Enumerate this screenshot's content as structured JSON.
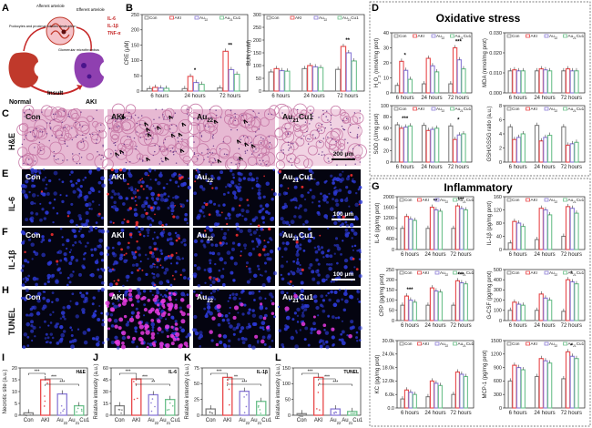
{
  "colors": {
    "con": "#808080",
    "aki": "#e8484a",
    "au22": "#8a7ad6",
    "au21cu1": "#6cc08b"
  },
  "panel_letters": {
    "A": "A",
    "B": "B",
    "C": "C",
    "D": "D",
    "E": "E",
    "F": "F",
    "G": "G",
    "H": "H",
    "I": "I",
    "J": "J",
    "K": "K",
    "L": "L"
  },
  "panelA": {
    "afferent": "Afferent arteriole",
    "efferent": "Efferent arteriole",
    "podocytes": "Podocytes and proximal tubules destruction",
    "glomerular": "Glomerular microthrombus",
    "cytokines": [
      "IL-6",
      "IL-1β",
      "TNF-α"
    ],
    "insult": "Insult",
    "normal": "Normal",
    "aki": "AKI"
  },
  "micro_labels": [
    "Con",
    "AKI",
    "Au22",
    "Au21Cu1"
  ],
  "row_labels": {
    "C": "H&E",
    "E": "IL-6",
    "F": "IL-1β",
    "H": "TUNEL"
  },
  "scale_bars": {
    "C": "200 μm",
    "E": "100 μm",
    "F": "100 μm"
  },
  "legend": [
    "Con",
    "AKI",
    "Au22",
    "Au21Cu1"
  ],
  "time_points": [
    "6 hours",
    "24 hours",
    "72 hours"
  ],
  "sig": {
    "one": "*",
    "two": "**",
    "three": "***"
  },
  "titles": {
    "oxidative": "Oxidative stress",
    "inflammatory": "Inflammatory"
  },
  "chart_data": [
    {
      "id": "B1",
      "type": "bar",
      "ylabel": "CRE (μM)",
      "ylim": [
        0,
        250
      ],
      "ticks": [
        "0",
        "50",
        "100",
        "150",
        "200",
        "250"
      ],
      "categories": [
        "6 hours",
        "24 hours",
        "72 hours"
      ],
      "series": [
        {
          "name": "Con",
          "values": [
            8,
            8,
            10
          ]
        },
        {
          "name": "AKI",
          "values": [
            12,
            48,
            130
          ]
        },
        {
          "name": "Au22",
          "values": [
            10,
            28,
            70
          ]
        },
        {
          "name": "Au21Cu1",
          "values": [
            9,
            22,
            55
          ]
        }
      ],
      "sig": [
        "",
        "*",
        "**"
      ]
    },
    {
      "id": "B2",
      "type": "bar",
      "ylabel": "BUN (mM)",
      "ylim": [
        0,
        300
      ],
      "ticks": [
        "0",
        "50",
        "100",
        "150",
        "200",
        "250",
        "300"
      ],
      "categories": [
        "6 hours",
        "24 hours",
        "72 hours"
      ],
      "series": [
        {
          "name": "Con",
          "values": [
            75,
            88,
            85
          ]
        },
        {
          "name": "AKI",
          "values": [
            88,
            100,
            175
          ]
        },
        {
          "name": "Au22",
          "values": [
            80,
            95,
            150
          ]
        },
        {
          "name": "Au21Cu1",
          "values": [
            78,
            92,
            118
          ]
        }
      ],
      "sig": [
        "",
        "",
        "**"
      ]
    },
    {
      "id": "D1",
      "type": "bar",
      "ylabel": "H2O2 (nmol/mg prot)",
      "ylim": [
        0,
        40
      ],
      "ticks": [
        "0",
        "10",
        "20",
        "30",
        "40"
      ],
      "categories": [
        "6 hours",
        "24 hours",
        "72 hours"
      ],
      "series": [
        {
          "name": "Con",
          "values": [
            5,
            6,
            6
          ]
        },
        {
          "name": "AKI",
          "values": [
            21,
            23,
            30
          ]
        },
        {
          "name": "Au22",
          "values": [
            15,
            18,
            22
          ]
        },
        {
          "name": "Au21Cu1",
          "values": [
            9,
            14,
            16
          ]
        }
      ],
      "sig": [
        "*",
        "",
        "***"
      ]
    },
    {
      "id": "D2",
      "type": "bar",
      "ylabel": "MDA (nmol/mg prot)",
      "ylim": [
        0,
        0.03
      ],
      "ticks": [
        "0.000",
        "0.010",
        "0.020",
        "0.030"
      ],
      "categories": [
        "6 hours",
        "24 hours",
        "72 hours"
      ],
      "series": [
        {
          "name": "Con",
          "values": [
            0.011,
            0.011,
            0.011
          ]
        },
        {
          "name": "AKI",
          "values": [
            0.0115,
            0.012,
            0.012
          ]
        },
        {
          "name": "Au22",
          "values": [
            0.011,
            0.0115,
            0.011
          ]
        },
        {
          "name": "Au21Cu1",
          "values": [
            0.011,
            0.011,
            0.011
          ]
        }
      ],
      "sig": [
        "",
        "",
        ""
      ]
    },
    {
      "id": "D3",
      "type": "bar",
      "ylabel": "SOD (U/mg prot)",
      "ylim": [
        0,
        100
      ],
      "ticks": [
        "0",
        "20",
        "40",
        "60",
        "80",
        "100"
      ],
      "categories": [
        "6 hours",
        "24 hours",
        "72 hours"
      ],
      "series": [
        {
          "name": "Con",
          "values": [
            66,
            65,
            64
          ]
        },
        {
          "name": "AKI",
          "values": [
            60,
            56,
            40
          ]
        },
        {
          "name": "Au22",
          "values": [
            62,
            58,
            48
          ]
        },
        {
          "name": "Au21Cu1",
          "values": [
            64,
            60,
            50
          ]
        }
      ],
      "sig": [
        "***",
        "",
        "*"
      ]
    },
    {
      "id": "D4",
      "type": "bar",
      "ylabel": "GSH/GSSG ratio (a.u.)",
      "ylim": [
        0,
        8
      ],
      "ticks": [
        "0",
        "2",
        "4",
        "6",
        "8"
      ],
      "categories": [
        "6 hours",
        "24 hours",
        "72 hours"
      ],
      "series": [
        {
          "name": "Con",
          "values": [
            5,
            5.2,
            5
          ]
        },
        {
          "name": "AKI",
          "values": [
            3.2,
            3,
            2.4
          ]
        },
        {
          "name": "Au22",
          "values": [
            3.5,
            3.5,
            2.6
          ]
        },
        {
          "name": "Au21Cu1",
          "values": [
            4,
            3.8,
            2.8
          ]
        }
      ],
      "sig": [
        "",
        "",
        ""
      ]
    },
    {
      "id": "G1",
      "type": "bar",
      "ylabel": "IL-6 (pg/mg prot)",
      "ylim": [
        0,
        2000
      ],
      "ticks": [
        "0",
        "400",
        "800",
        "1200",
        "1600",
        "2000"
      ],
      "categories": [
        "6 hours",
        "24 hours",
        "72 hours"
      ],
      "series": [
        {
          "name": "Con",
          "values": [
            800,
            800,
            800
          ]
        },
        {
          "name": "AKI",
          "values": [
            1250,
            1600,
            1650
          ]
        },
        {
          "name": "Au22",
          "values": [
            1150,
            1500,
            1550
          ]
        },
        {
          "name": "Au21Cu1",
          "values": [
            1100,
            1450,
            1500
          ]
        }
      ],
      "sig": [
        "",
        "**",
        "***"
      ]
    },
    {
      "id": "G2",
      "type": "bar",
      "ylabel": "IL-1β (pg/mg prot)",
      "ylim": [
        0,
        160
      ],
      "ticks": [
        "0",
        "40",
        "80",
        "120",
        "160"
      ],
      "categories": [
        "6 hours",
        "24 hours",
        "72 hours"
      ],
      "series": [
        {
          "name": "Con",
          "values": [
            20,
            30,
            40
          ]
        },
        {
          "name": "AKI",
          "values": [
            85,
            125,
            130
          ]
        },
        {
          "name": "Au22",
          "values": [
            80,
            120,
            125
          ]
        },
        {
          "name": "Au21Cu1",
          "values": [
            70,
            105,
            110
          ]
        }
      ],
      "sig": [
        "",
        "",
        ""
      ]
    },
    {
      "id": "G3",
      "type": "bar",
      "ylabel": "CRP (pg/mg prot)",
      "ylim": [
        0,
        250
      ],
      "ticks": [
        "0",
        "50",
        "100",
        "150",
        "200",
        "250"
      ],
      "categories": [
        "6 hours",
        "24 hours",
        "72 hours"
      ],
      "series": [
        {
          "name": "Con",
          "values": [
            75,
            75,
            75
          ]
        },
        {
          "name": "AKI",
          "values": [
            120,
            160,
            195
          ]
        },
        {
          "name": "Au22",
          "values": [
            100,
            145,
            185
          ]
        },
        {
          "name": "Au21Cu1",
          "values": [
            90,
            140,
            180
          ]
        }
      ],
      "sig": [
        "***",
        "",
        "***"
      ]
    },
    {
      "id": "G4",
      "type": "bar",
      "ylabel": "G-CSF (pg/mg prot)",
      "ylim": [
        0,
        500
      ],
      "ticks": [
        "0",
        "100",
        "200",
        "300",
        "400",
        "500"
      ],
      "categories": [
        "6 hours",
        "24 hours",
        "72 hours"
      ],
      "series": [
        {
          "name": "Con",
          "values": [
            100,
            100,
            90
          ]
        },
        {
          "name": "AKI",
          "values": [
            180,
            260,
            400
          ]
        },
        {
          "name": "Au22",
          "values": [
            160,
            220,
            380
          ]
        },
        {
          "name": "Au21Cu1",
          "values": [
            150,
            200,
            360
          ]
        }
      ],
      "sig": [
        "",
        "",
        "*"
      ]
    },
    {
      "id": "G5",
      "type": "bar",
      "ylabel": "KC (pg/mg prot)",
      "ylim": [
        0,
        30000
      ],
      "ticks": [
        "0.0",
        "6.0k",
        "12.0k",
        "18.0k",
        "24.0k",
        "30.0k"
      ],
      "categories": [
        "6 hours",
        "24 hours",
        "72 hours"
      ],
      "series": [
        {
          "name": "Con",
          "values": [
            4000,
            5000,
            6000
          ]
        },
        {
          "name": "AKI",
          "values": [
            8000,
            12000,
            16000
          ]
        },
        {
          "name": "Au22",
          "values": [
            7000,
            11000,
            15000
          ]
        },
        {
          "name": "Au21Cu1",
          "values": [
            6000,
            10000,
            14000
          ]
        }
      ],
      "sig": [
        "",
        "",
        ""
      ]
    },
    {
      "id": "G6",
      "type": "bar",
      "ylabel": "MCP-1 (pg/mg prot)",
      "ylim": [
        0,
        1500
      ],
      "ticks": [
        "0",
        "300",
        "600",
        "900",
        "1200",
        "1500"
      ],
      "categories": [
        "6 hours",
        "24 hours",
        "72 hours"
      ],
      "series": [
        {
          "name": "Con",
          "values": [
            600,
            700,
            650
          ]
        },
        {
          "name": "AKI",
          "values": [
            950,
            1100,
            1250
          ]
        },
        {
          "name": "Au22",
          "values": [
            900,
            1050,
            1150
          ]
        },
        {
          "name": "Au21Cu1",
          "values": [
            850,
            1000,
            1100
          ]
        }
      ],
      "sig": [
        "",
        "",
        "*"
      ]
    },
    {
      "id": "I",
      "type": "bar",
      "ylabel": "Necrotic site (a.u.)",
      "tag": "H&E",
      "ylim": [
        0,
        20
      ],
      "ticks": [
        "0",
        "5",
        "10",
        "15",
        "20"
      ],
      "categories": [
        "Con",
        "AKI",
        "Au22",
        "Au21Cu1"
      ],
      "series": [
        {
          "name": "value",
          "values": [
            1,
            15,
            9,
            4
          ]
        }
      ],
      "sig": [
        "***",
        "***",
        "***"
      ]
    },
    {
      "id": "J",
      "type": "bar",
      "ylabel": "Relative intensity (a.u.)",
      "tag": "IL-6",
      "ylim": [
        0,
        60
      ],
      "ticks": [
        "0",
        "15",
        "30",
        "45",
        "60"
      ],
      "categories": [
        "Con",
        "AKI",
        "Au22",
        "Au21Cu1"
      ],
      "series": [
        {
          "name": "value",
          "values": [
            12,
            46,
            26,
            20
          ]
        }
      ],
      "sig": [
        "***",
        "***",
        "**"
      ]
    },
    {
      "id": "K",
      "type": "bar",
      "ylabel": "Relative intensity (a.u.)",
      "tag": "IL-1β",
      "ylim": [
        0,
        75
      ],
      "ticks": [
        "0",
        "25",
        "50",
        "75"
      ],
      "categories": [
        "Con",
        "AKI",
        "Au22",
        "Au21Cu1"
      ],
      "series": [
        {
          "name": "value",
          "values": [
            10,
            60,
            38,
            22
          ]
        }
      ],
      "sig": [
        "***",
        "**",
        "***"
      ]
    },
    {
      "id": "L",
      "type": "bar",
      "ylabel": "Relative intensity (a.u.)",
      "tag": "TUNEL",
      "ylim": [
        0,
        150
      ],
      "ticks": [
        "0",
        "50",
        "100",
        "150"
      ],
      "categories": [
        "Con",
        "AKI",
        "Au22",
        "Au21Cu1"
      ],
      "series": [
        {
          "name": "value",
          "values": [
            5,
            120,
            20,
            12
          ]
        }
      ],
      "sig": [
        "***",
        "***",
        "***"
      ]
    }
  ]
}
